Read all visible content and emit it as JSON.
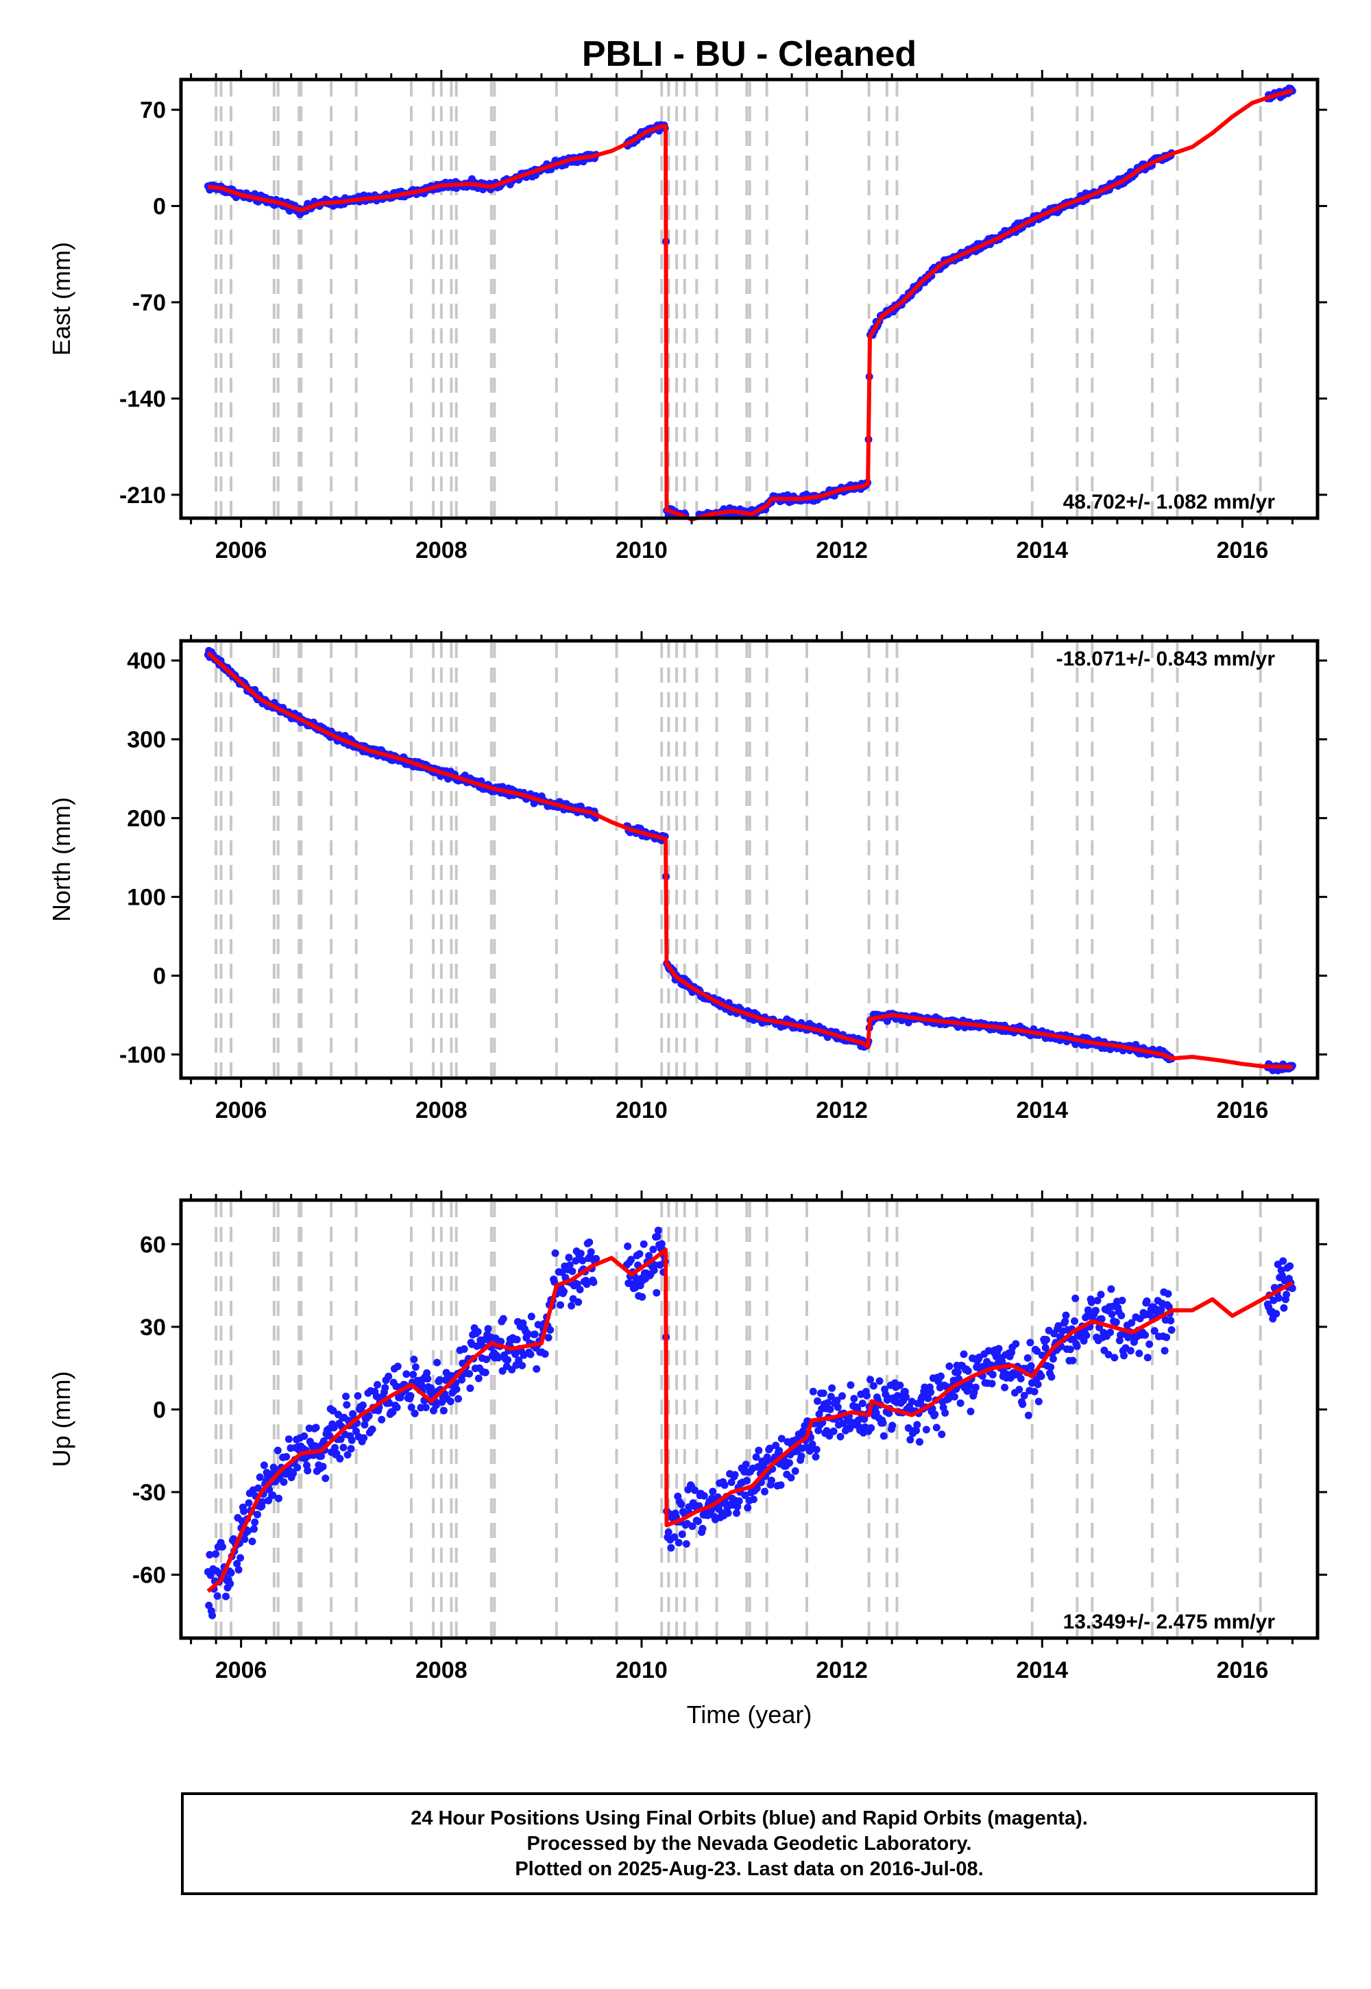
{
  "figure": {
    "title": "PBLI  - BU - Cleaned",
    "xlabel": "Time (year)",
    "colors": {
      "points": "#1a1aff",
      "model": "#ff0000",
      "event_lines": "#c8c8c8",
      "frame": "#000000"
    },
    "caption": [
      "24 Hour Positions Using Final Orbits (blue) and Rapid Orbits (magenta).",
      "Processed by the Nevada Geodetic Laboratory.",
      "Plotted on 2025-Aug-23. Last data on 2016-Jul-08."
    ]
  },
  "chart_data": [
    {
      "type": "scatter",
      "panel": "east",
      "ylabel": "East (mm)",
      "rate_text": "48.702+/- 1.082 mm/yr",
      "rate_position": "bottom-right",
      "xlim": [
        2005.4,
        2016.75
      ],
      "ylim": [
        -227,
        92
      ],
      "xticks": [
        2006,
        2008,
        2010,
        2012,
        2014,
        2016
      ],
      "yticks": [
        70,
        0,
        -70,
        -140,
        -210
      ],
      "grid": false,
      "event_lines": [
        2005.75,
        2005.8,
        2005.9,
        2006.33,
        2006.37,
        2006.58,
        2006.6,
        2006.9,
        2007.15,
        2007.7,
        2007.92,
        2008.0,
        2008.1,
        2008.15,
        2008.5,
        2008.53,
        2009.15,
        2009.75,
        2010.2,
        2010.27,
        2010.35,
        2010.43,
        2010.55,
        2010.75,
        2011.05,
        2011.08,
        2011.25,
        2011.65,
        2012.27,
        2012.45,
        2012.55,
        2013.9,
        2014.35,
        2014.5,
        2015.1,
        2015.35,
        2016.18
      ],
      "series": [
        {
          "x": [
            2005.67,
            2005.8,
            2006.0,
            2006.2,
            2006.4,
            2006.6,
            2006.8,
            2007.0,
            2007.2,
            2007.5,
            2007.8,
            2008.0,
            2008.3,
            2008.5,
            2008.8,
            2009.0,
            2009.3,
            2009.5,
            2009.7,
            2009.9,
            2010.05,
            2010.2,
            2010.24,
            2010.25,
            2010.4,
            2010.5,
            2010.7,
            2010.9,
            2011.1,
            2011.25,
            2011.3,
            2011.6,
            2011.8,
            2012.0,
            2012.2,
            2012.26,
            2012.28,
            2012.4,
            2012.6,
            2012.8,
            2013.0,
            2013.3,
            2013.6,
            2013.9,
            2014.2,
            2014.5,
            2014.8,
            2015.0,
            2015.2,
            2015.3,
            2015.5,
            2015.7,
            2015.9,
            2016.1,
            2016.3,
            2016.5
          ],
          "y": [
            14,
            13,
            8,
            5,
            2,
            -3,
            2,
            3,
            5,
            7,
            11,
            15,
            16,
            14,
            22,
            27,
            34,
            36,
            40,
            47,
            54,
            58,
            58,
            -221,
            -225,
            -228,
            -224,
            -222,
            -224,
            -218,
            -213,
            -213,
            -211,
            -206,
            -204,
            -202,
            -95,
            -80,
            -70,
            -55,
            -42,
            -32,
            -22,
            -10,
            0,
            8,
            18,
            28,
            35,
            38,
            43,
            53,
            65,
            75,
            80,
            84
          ]
        }
      ]
    },
    {
      "type": "scatter",
      "panel": "north",
      "ylabel": "North (mm)",
      "rate_text": "-18.071+/- 0.843 mm/yr",
      "rate_position": "top-right",
      "xlim": [
        2005.4,
        2016.75
      ],
      "ylim": [
        -130,
        425
      ],
      "xticks": [
        2006,
        2008,
        2010,
        2012,
        2014,
        2016
      ],
      "yticks": [
        400,
        300,
        200,
        100,
        0,
        -100
      ],
      "grid": false,
      "event_lines": [
        2005.75,
        2005.8,
        2005.9,
        2006.33,
        2006.37,
        2006.58,
        2006.6,
        2006.9,
        2007.15,
        2007.7,
        2007.92,
        2008.0,
        2008.1,
        2008.15,
        2008.5,
        2008.53,
        2009.15,
        2009.75,
        2010.2,
        2010.27,
        2010.35,
        2010.43,
        2010.55,
        2010.75,
        2011.05,
        2011.08,
        2011.25,
        2011.65,
        2012.27,
        2012.45,
        2012.55,
        2013.9,
        2014.35,
        2014.5,
        2015.1,
        2015.35,
        2016.18
      ],
      "series": [
        {
          "x": [
            2005.67,
            2005.8,
            2006.0,
            2006.2,
            2006.4,
            2006.6,
            2006.8,
            2007.0,
            2007.3,
            2007.6,
            2007.9,
            2008.2,
            2008.5,
            2008.8,
            2009.0,
            2009.3,
            2009.5,
            2009.7,
            2009.9,
            2010.1,
            2010.24,
            2010.25,
            2010.35,
            2010.5,
            2010.7,
            2010.9,
            2011.2,
            2011.5,
            2011.8,
            2012.0,
            2012.2,
            2012.26,
            2012.28,
            2012.5,
            2012.8,
            2013.0,
            2013.3,
            2013.6,
            2013.9,
            2014.2,
            2014.5,
            2014.8,
            2015.0,
            2015.2,
            2015.3,
            2015.5,
            2015.8,
            2016.0,
            2016.2,
            2016.5
          ],
          "y": [
            410,
            395,
            372,
            350,
            337,
            325,
            312,
            300,
            285,
            275,
            262,
            250,
            238,
            230,
            222,
            212,
            207,
            195,
            185,
            178,
            174,
            15,
            -2,
            -15,
            -30,
            -42,
            -55,
            -62,
            -70,
            -78,
            -85,
            -90,
            -55,
            -50,
            -55,
            -58,
            -62,
            -66,
            -72,
            -78,
            -85,
            -90,
            -95,
            -100,
            -105,
            -103,
            -108,
            -112,
            -115,
            -116
          ]
        }
      ]
    },
    {
      "type": "scatter",
      "panel": "up",
      "ylabel": "Up (mm)",
      "rate_text": "13.349+/- 2.475 mm/yr",
      "rate_position": "bottom-right",
      "xlim": [
        2005.4,
        2016.75
      ],
      "ylim": [
        -83,
        76
      ],
      "xticks": [
        2006,
        2008,
        2010,
        2012,
        2014,
        2016
      ],
      "yticks": [
        60,
        30,
        0,
        -30,
        -60
      ],
      "grid": false,
      "event_lines": [
        2005.75,
        2005.8,
        2005.9,
        2006.33,
        2006.37,
        2006.58,
        2006.6,
        2006.9,
        2007.15,
        2007.7,
        2007.92,
        2008.0,
        2008.1,
        2008.15,
        2008.5,
        2008.53,
        2009.15,
        2009.75,
        2010.2,
        2010.27,
        2010.35,
        2010.43,
        2010.55,
        2010.75,
        2011.05,
        2011.08,
        2011.25,
        2011.65,
        2012.27,
        2012.45,
        2012.55,
        2013.9,
        2014.35,
        2014.5,
        2015.1,
        2015.35,
        2016.18
      ],
      "series": [
        {
          "x": [
            2005.67,
            2005.8,
            2006.0,
            2006.2,
            2006.4,
            2006.6,
            2006.8,
            2007.0,
            2007.2,
            2007.5,
            2007.7,
            2007.9,
            2008.1,
            2008.3,
            2008.5,
            2008.7,
            2009.0,
            2009.15,
            2009.3,
            2009.5,
            2009.7,
            2009.9,
            2010.1,
            2010.24,
            2010.25,
            2010.4,
            2010.55,
            2010.7,
            2010.9,
            2011.1,
            2011.3,
            2011.5,
            2011.65,
            2011.7,
            2011.9,
            2012.1,
            2012.27,
            2012.3,
            2012.5,
            2012.7,
            2012.9,
            2013.1,
            2013.3,
            2013.5,
            2013.7,
            2013.9,
            2014.1,
            2014.3,
            2014.5,
            2014.7,
            2014.9,
            2015.1,
            2015.3,
            2015.5,
            2015.7,
            2015.9,
            2016.1,
            2016.3,
            2016.5
          ],
          "y": [
            -66,
            -62,
            -45,
            -30,
            -22,
            -16,
            -15,
            -8,
            -2,
            5,
            9,
            3,
            10,
            18,
            24,
            22,
            24,
            45,
            47,
            52,
            55,
            49,
            54,
            58,
            -42,
            -40,
            -37,
            -35,
            -30,
            -28,
            -20,
            -14,
            -10,
            -4,
            -3,
            -1,
            -2,
            3,
            0,
            -2,
            2,
            8,
            12,
            15,
            16,
            12,
            22,
            28,
            32,
            30,
            28,
            32,
            36,
            36,
            40,
            34,
            38,
            42,
            46
          ]
        }
      ]
    }
  ]
}
